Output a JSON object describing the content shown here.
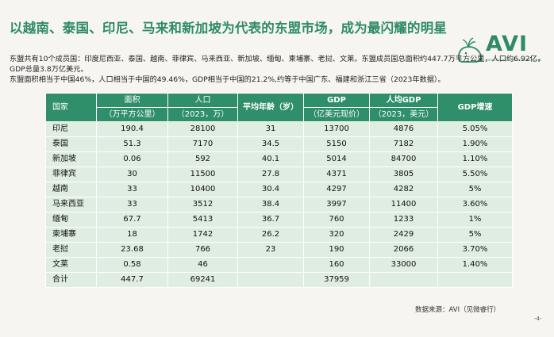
{
  "title": "以越南、泰国、印尼、马来和新加坡为代表的东盟市场，成为最闪耀的明星",
  "logo": {
    "text": "AVI",
    "tagline": "ALL VIEW INSIGHT RESEARCH INSTITUTE"
  },
  "intro": {
    "line1": "东盟共有10个成员国：印度尼西亚、泰国、越南、菲律宾、马来西亚、新加坡、缅甸、柬埔寨、老挝、文莱。东盟成员国总面积约447.7万平方公里，人口约6.92亿，GDP总量3.8万亿美元。",
    "line2": "东盟面积相当于中国46%，人口相当于中国的49.46%，GDP相当于中国的21.2%,约等于中国广东、福建和浙江三省（2023年数据）。"
  },
  "table": {
    "headers_row1": [
      "国家",
      "面积",
      "人口",
      "平均年龄（岁）",
      "GDP",
      "人均GDP",
      "GDP增速"
    ],
    "headers_row2": [
      "（万平方公里）",
      "（2023，万）",
      "（亿美元现价）",
      "（2023，美元）"
    ],
    "rows": [
      [
        "印尼",
        "190.4",
        "28100",
        "31",
        "13700",
        "4876",
        "5.05%"
      ],
      [
        "泰国",
        "51.3",
        "7170",
        "34.5",
        "5150",
        "7182",
        "1.90%"
      ],
      [
        "新加坡",
        "0.06",
        "592",
        "40.1",
        "5014",
        "84700",
        "1.10%"
      ],
      [
        "菲律宾",
        "30",
        "11500",
        "27.8",
        "4371",
        "3805",
        "5.50%"
      ],
      [
        "越南",
        "33",
        "10400",
        "30.4",
        "4297",
        "4282",
        "5%"
      ],
      [
        "马来西亚",
        "33",
        "3512",
        "38.4",
        "3997",
        "11400",
        "3.60%"
      ],
      [
        "缅甸",
        "67.7",
        "5413",
        "36.7",
        "760",
        "1233",
        "1%"
      ],
      [
        "柬埔寨",
        "18",
        "1742",
        "26.2",
        "320",
        "2429",
        "5%"
      ],
      [
        "老挝",
        "23.68",
        "766",
        "23",
        "190",
        "2066",
        "3.70%"
      ],
      [
        "文莱",
        "0.58",
        "46",
        "",
        "160",
        "33000",
        "1.40%"
      ],
      [
        "合计",
        "447.7",
        "69241",
        "",
        "37959",
        "",
        ""
      ]
    ]
  },
  "source": "数据来源：AVI（见微睿行）",
  "page_number": "-4-",
  "colors": {
    "accent": "#2e8b66",
    "header_bg": "#2f8f6a",
    "cell_bg": "#e0eee1",
    "page_bg": "#f6f5f1"
  }
}
